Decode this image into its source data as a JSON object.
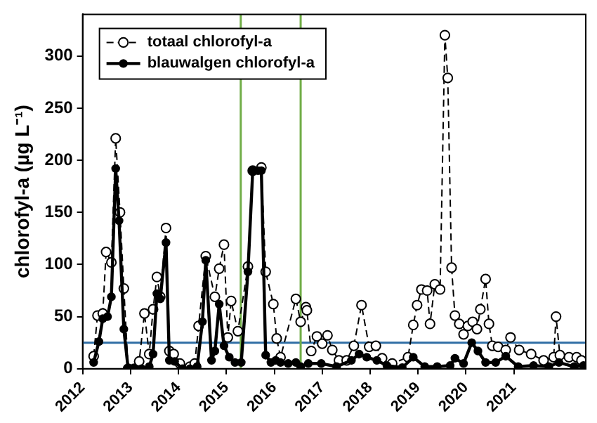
{
  "chart_data": {
    "type": "line",
    "ylabel": "chlorofyl-a (µg L⁻¹)",
    "xlim": [
      2012,
      2022.5
    ],
    "xticks": [
      2012,
      2013,
      2014,
      2015,
      2016,
      2017,
      2018,
      2019,
      2020,
      2021
    ],
    "ylim": [
      0,
      340
    ],
    "yticks": [
      0,
      50,
      100,
      150,
      200,
      250,
      300
    ],
    "grid": false,
    "legend": "top left",
    "marker": "circle",
    "ref_lines": [
      {
        "axis": "y",
        "value": 25,
        "label": null,
        "color": "#2e6da4"
      },
      {
        "axis": "x",
        "value": 2015.3,
        "label": null,
        "color": "#70ad47"
      },
      {
        "axis": "x",
        "value": 2016.55,
        "label": null,
        "color": "#70ad47"
      }
    ],
    "series": [
      {
        "name": "totaal chlorofyl-a",
        "color": "#000000",
        "line_style": "dashed",
        "x": [
          2012.23,
          2012.31,
          2012.42,
          2012.49,
          2012.6,
          2012.69,
          2012.78,
          2012.86,
          2012.95,
          2013.08,
          2013.18,
          2013.29,
          2013.39,
          2013.47,
          2013.55,
          2013.62,
          2013.74,
          2013.81,
          2013.9,
          2014.03,
          2014.24,
          2014.34,
          2014.42,
          2014.57,
          2014.76,
          2014.85,
          2014.95,
          2015.03,
          2015.1,
          2015.24,
          2015.45,
          2015.55,
          2015.73,
          2015.82,
          2015.98,
          2016.05,
          2016.13,
          2016.45,
          2016.55,
          2016.66,
          2016.68,
          2016.77,
          2016.89,
          2017.0,
          2017.11,
          2017.21,
          2017.35,
          2017.51,
          2017.66,
          2017.82,
          2017.98,
          2018.12,
          2018.25,
          2018.46,
          2018.79,
          2018.9,
          2018.98,
          2019.07,
          2019.19,
          2019.25,
          2019.35,
          2019.46,
          2019.56,
          2019.62,
          2019.7,
          2019.77,
          2019.86,
          2019.95,
          2020.04,
          2020.14,
          2020.23,
          2020.3,
          2020.41,
          2020.48,
          2020.55,
          2020.67,
          2020.83,
          2020.93,
          2021.11,
          2021.36,
          2021.62,
          2021.83,
          2021.88,
          2021.96,
          2022.15,
          2022.31,
          2022.41
        ],
        "values": [
          12,
          51,
          53,
          112,
          102,
          221,
          150,
          77,
          0,
          0,
          7,
          53,
          14,
          57,
          88,
          69,
          135,
          17,
          14,
          5,
          2,
          5,
          41,
          108,
          69,
          96,
          119,
          30,
          65,
          36,
          98,
          190,
          193,
          93,
          62,
          29,
          11,
          67,
          45,
          59,
          56,
          17,
          31,
          24,
          32,
          18,
          8,
          8,
          22,
          61,
          21,
          22,
          10,
          5,
          11,
          42,
          61,
          76,
          75,
          43,
          81,
          76,
          320,
          279,
          97,
          51,
          43,
          33,
          41,
          45,
          38,
          57,
          86,
          43,
          22,
          21,
          18,
          30,
          18,
          14,
          8,
          11,
          50,
          13,
          11,
          11,
          8
        ]
      },
      {
        "name": "blauwalgen chlorofyl-a",
        "color": "#000000",
        "line_style": "solid",
        "x": [
          2012.23,
          2012.34,
          2012.42,
          2012.52,
          2012.6,
          2012.69,
          2012.76,
          2012.86,
          2012.95,
          2013.08,
          2013.23,
          2013.39,
          2013.47,
          2013.55,
          2013.62,
          2013.74,
          2013.81,
          2013.92,
          2014.08,
          2014.24,
          2014.39,
          2014.5,
          2014.57,
          2014.69,
          2014.76,
          2014.85,
          2014.95,
          2015.06,
          2015.18,
          2015.31,
          2015.45,
          2015.55,
          2015.66,
          2015.73,
          2015.82,
          2015.93,
          2016.03,
          2016.13,
          2016.29,
          2016.45,
          2016.55,
          2016.71,
          2016.98,
          2017.3,
          2017.61,
          2017.77,
          2017.93,
          2018.14,
          2018.35,
          2018.67,
          2018.9,
          2019.14,
          2019.4,
          2019.67,
          2019.77,
          2019.95,
          2020.12,
          2020.25,
          2020.41,
          2020.62,
          2020.83,
          2021.09,
          2021.41,
          2021.73,
          2021.94,
          2022.26,
          2022.45
        ],
        "values": [
          6,
          26,
          48,
          50,
          69,
          192,
          142,
          38,
          0,
          0,
          0,
          2,
          14,
          72,
          67,
          121,
          8,
          7,
          0,
          0,
          2,
          45,
          104,
          8,
          17,
          62,
          22,
          11,
          6,
          6,
          93,
          190,
          190,
          190,
          13,
          6,
          8,
          6,
          5,
          6,
          2,
          5,
          5,
          2,
          8,
          14,
          11,
          8,
          3,
          1,
          11,
          2,
          2,
          3,
          10,
          5,
          25,
          17,
          6,
          6,
          12,
          2,
          3,
          2,
          6,
          2,
          3
        ]
      }
    ]
  }
}
